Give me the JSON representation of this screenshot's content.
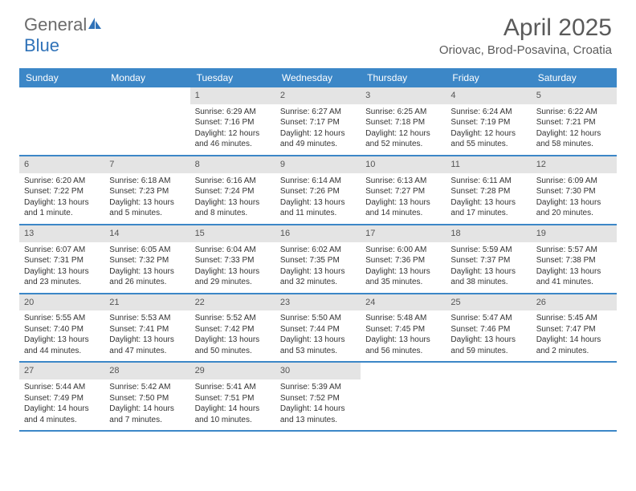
{
  "logo": {
    "text1": "General",
    "text2": "Blue"
  },
  "title": "April 2025",
  "location": "Oriovac, Brod-Posavina, Croatia",
  "colors": {
    "header_bg": "#3c87c7",
    "header_text": "#ffffff",
    "daynum_bg": "#e4e4e4",
    "body_text": "#333333",
    "logo_gray": "#6b6b6b",
    "logo_blue": "#2f72b8",
    "title_color": "#5a5a5a"
  },
  "day_names": [
    "Sunday",
    "Monday",
    "Tuesday",
    "Wednesday",
    "Thursday",
    "Friday",
    "Saturday"
  ],
  "weeks": [
    [
      {
        "empty": true
      },
      {
        "empty": true
      },
      {
        "n": "1",
        "sr": "Sunrise: 6:29 AM",
        "ss": "Sunset: 7:16 PM",
        "dl": "Daylight: 12 hours and 46 minutes."
      },
      {
        "n": "2",
        "sr": "Sunrise: 6:27 AM",
        "ss": "Sunset: 7:17 PM",
        "dl": "Daylight: 12 hours and 49 minutes."
      },
      {
        "n": "3",
        "sr": "Sunrise: 6:25 AM",
        "ss": "Sunset: 7:18 PM",
        "dl": "Daylight: 12 hours and 52 minutes."
      },
      {
        "n": "4",
        "sr": "Sunrise: 6:24 AM",
        "ss": "Sunset: 7:19 PM",
        "dl": "Daylight: 12 hours and 55 minutes."
      },
      {
        "n": "5",
        "sr": "Sunrise: 6:22 AM",
        "ss": "Sunset: 7:21 PM",
        "dl": "Daylight: 12 hours and 58 minutes."
      }
    ],
    [
      {
        "n": "6",
        "sr": "Sunrise: 6:20 AM",
        "ss": "Sunset: 7:22 PM",
        "dl": "Daylight: 13 hours and 1 minute."
      },
      {
        "n": "7",
        "sr": "Sunrise: 6:18 AM",
        "ss": "Sunset: 7:23 PM",
        "dl": "Daylight: 13 hours and 5 minutes."
      },
      {
        "n": "8",
        "sr": "Sunrise: 6:16 AM",
        "ss": "Sunset: 7:24 PM",
        "dl": "Daylight: 13 hours and 8 minutes."
      },
      {
        "n": "9",
        "sr": "Sunrise: 6:14 AM",
        "ss": "Sunset: 7:26 PM",
        "dl": "Daylight: 13 hours and 11 minutes."
      },
      {
        "n": "10",
        "sr": "Sunrise: 6:13 AM",
        "ss": "Sunset: 7:27 PM",
        "dl": "Daylight: 13 hours and 14 minutes."
      },
      {
        "n": "11",
        "sr": "Sunrise: 6:11 AM",
        "ss": "Sunset: 7:28 PM",
        "dl": "Daylight: 13 hours and 17 minutes."
      },
      {
        "n": "12",
        "sr": "Sunrise: 6:09 AM",
        "ss": "Sunset: 7:30 PM",
        "dl": "Daylight: 13 hours and 20 minutes."
      }
    ],
    [
      {
        "n": "13",
        "sr": "Sunrise: 6:07 AM",
        "ss": "Sunset: 7:31 PM",
        "dl": "Daylight: 13 hours and 23 minutes."
      },
      {
        "n": "14",
        "sr": "Sunrise: 6:05 AM",
        "ss": "Sunset: 7:32 PM",
        "dl": "Daylight: 13 hours and 26 minutes."
      },
      {
        "n": "15",
        "sr": "Sunrise: 6:04 AM",
        "ss": "Sunset: 7:33 PM",
        "dl": "Daylight: 13 hours and 29 minutes."
      },
      {
        "n": "16",
        "sr": "Sunrise: 6:02 AM",
        "ss": "Sunset: 7:35 PM",
        "dl": "Daylight: 13 hours and 32 minutes."
      },
      {
        "n": "17",
        "sr": "Sunrise: 6:00 AM",
        "ss": "Sunset: 7:36 PM",
        "dl": "Daylight: 13 hours and 35 minutes."
      },
      {
        "n": "18",
        "sr": "Sunrise: 5:59 AM",
        "ss": "Sunset: 7:37 PM",
        "dl": "Daylight: 13 hours and 38 minutes."
      },
      {
        "n": "19",
        "sr": "Sunrise: 5:57 AM",
        "ss": "Sunset: 7:38 PM",
        "dl": "Daylight: 13 hours and 41 minutes."
      }
    ],
    [
      {
        "n": "20",
        "sr": "Sunrise: 5:55 AM",
        "ss": "Sunset: 7:40 PM",
        "dl": "Daylight: 13 hours and 44 minutes."
      },
      {
        "n": "21",
        "sr": "Sunrise: 5:53 AM",
        "ss": "Sunset: 7:41 PM",
        "dl": "Daylight: 13 hours and 47 minutes."
      },
      {
        "n": "22",
        "sr": "Sunrise: 5:52 AM",
        "ss": "Sunset: 7:42 PM",
        "dl": "Daylight: 13 hours and 50 minutes."
      },
      {
        "n": "23",
        "sr": "Sunrise: 5:50 AM",
        "ss": "Sunset: 7:44 PM",
        "dl": "Daylight: 13 hours and 53 minutes."
      },
      {
        "n": "24",
        "sr": "Sunrise: 5:48 AM",
        "ss": "Sunset: 7:45 PM",
        "dl": "Daylight: 13 hours and 56 minutes."
      },
      {
        "n": "25",
        "sr": "Sunrise: 5:47 AM",
        "ss": "Sunset: 7:46 PM",
        "dl": "Daylight: 13 hours and 59 minutes."
      },
      {
        "n": "26",
        "sr": "Sunrise: 5:45 AM",
        "ss": "Sunset: 7:47 PM",
        "dl": "Daylight: 14 hours and 2 minutes."
      }
    ],
    [
      {
        "n": "27",
        "sr": "Sunrise: 5:44 AM",
        "ss": "Sunset: 7:49 PM",
        "dl": "Daylight: 14 hours and 4 minutes."
      },
      {
        "n": "28",
        "sr": "Sunrise: 5:42 AM",
        "ss": "Sunset: 7:50 PM",
        "dl": "Daylight: 14 hours and 7 minutes."
      },
      {
        "n": "29",
        "sr": "Sunrise: 5:41 AM",
        "ss": "Sunset: 7:51 PM",
        "dl": "Daylight: 14 hours and 10 minutes."
      },
      {
        "n": "30",
        "sr": "Sunrise: 5:39 AM",
        "ss": "Sunset: 7:52 PM",
        "dl": "Daylight: 14 hours and 13 minutes."
      },
      {
        "empty": true
      },
      {
        "empty": true
      },
      {
        "empty": true
      }
    ]
  ]
}
